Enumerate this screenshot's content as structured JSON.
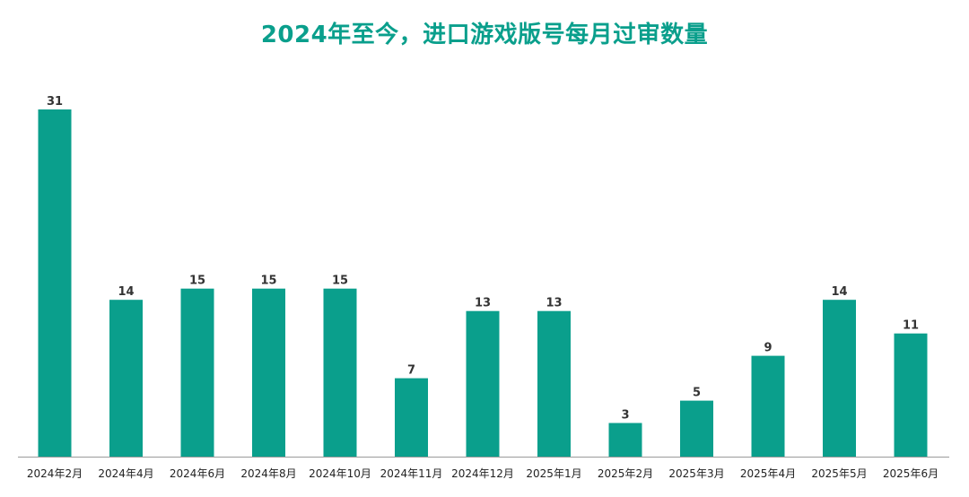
{
  "chart_data": {
    "type": "bar",
    "title": "2024年至今，进口游戏版号每月过审数量",
    "xlabel": "",
    "ylabel": "",
    "categories": [
      "2024年2月",
      "2024年4月",
      "2024年6月",
      "2024年8月",
      "2024年10月",
      "2024年11月",
      "2024年12月",
      "2025年1月",
      "2025年2月",
      "2025年3月",
      "2025年4月",
      "2025年5月",
      "2025年6月"
    ],
    "values": [
      31,
      14,
      15,
      15,
      15,
      7,
      13,
      13,
      3,
      5,
      9,
      14,
      11
    ],
    "ylim": [
      0,
      31
    ],
    "grid": false,
    "legend": "none",
    "colors": {
      "bar": "#0a9f8c",
      "title": "#0a9f8c",
      "value_label": "#333333",
      "tick_label": "#222222",
      "axis": "#9a9a9a"
    }
  }
}
